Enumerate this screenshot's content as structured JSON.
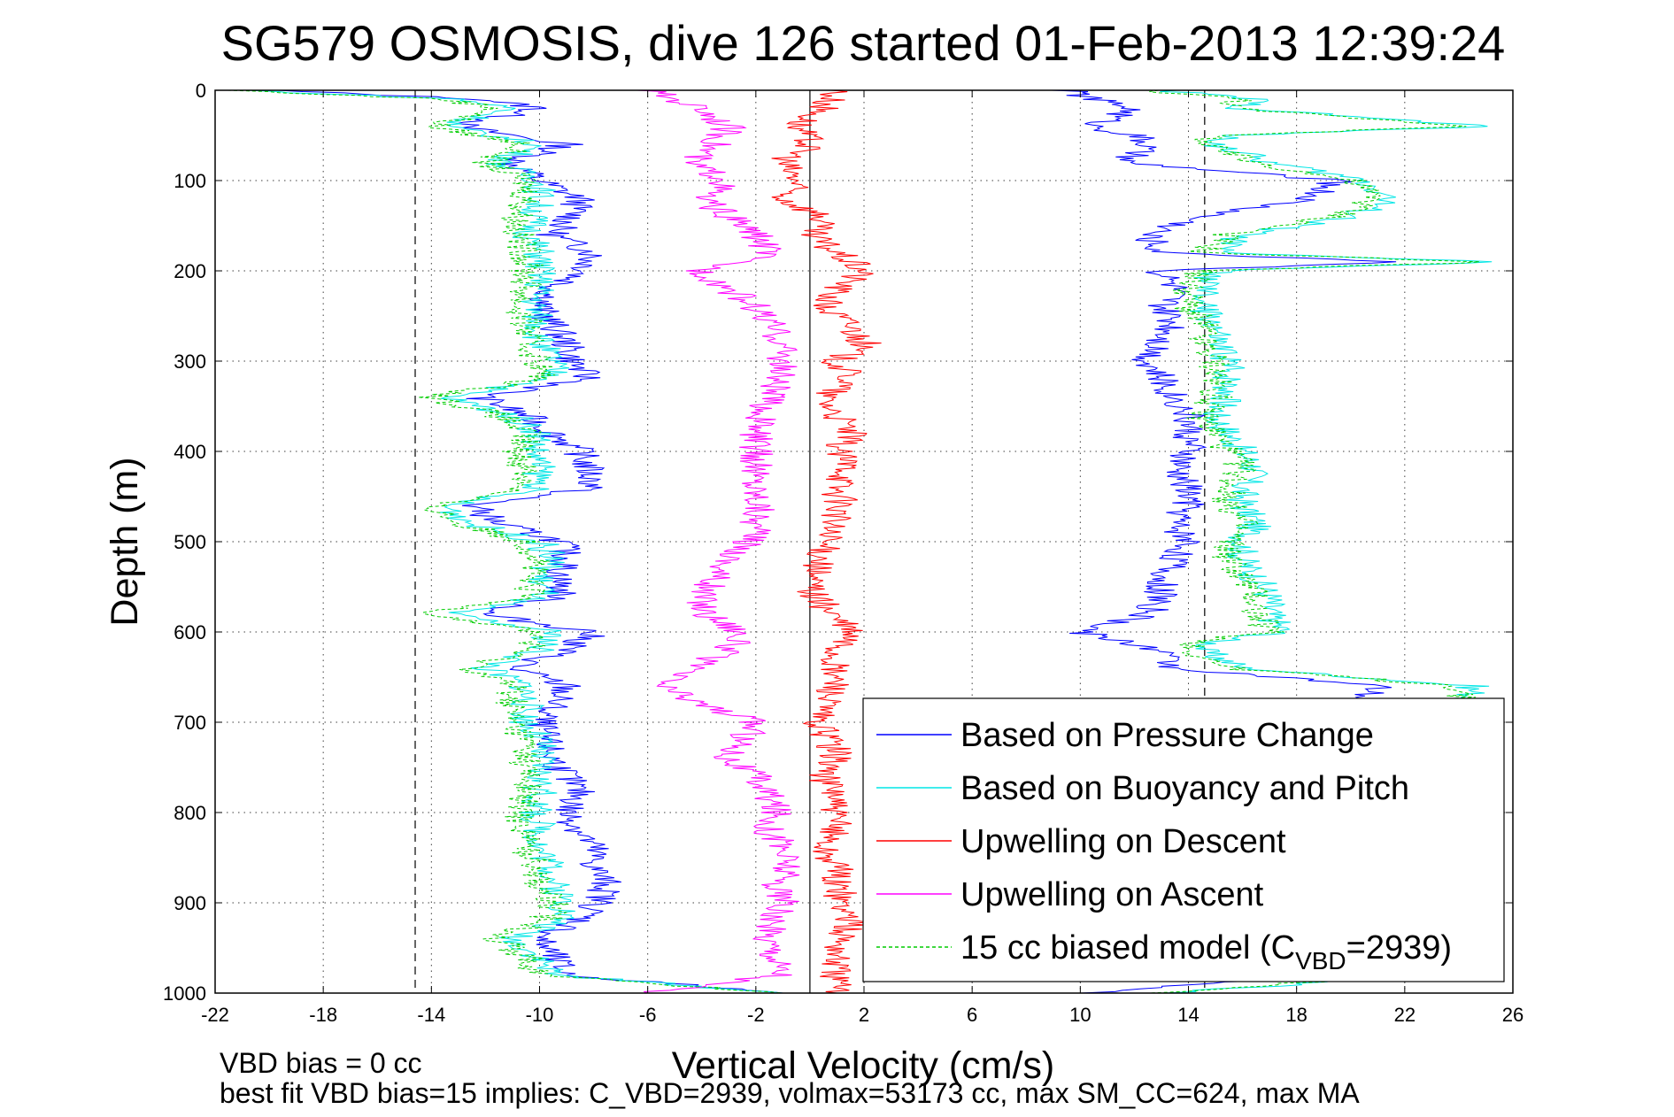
{
  "chart_data": {
    "type": "line",
    "title": "SG579 OSMOSIS, dive 126 started 01-Feb-2013 12:39:24",
    "xlabel": "Vertical Velocity (cm/s)",
    "ylabel": "Depth (m)",
    "xlim": [
      -22,
      26
    ],
    "ylim": [
      0,
      1000
    ],
    "y_reversed": true,
    "grid": true,
    "x_ticks": [
      "-22",
      "-18",
      "-14",
      "-10",
      "-6",
      "-2",
      "2",
      "6",
      "10",
      "14",
      "18",
      "22",
      "26"
    ],
    "y_ticks": [
      "0",
      "100",
      "200",
      "300",
      "400",
      "500",
      "600",
      "700",
      "800",
      "900",
      "1000"
    ],
    "reference_lines": [
      {
        "x": -14.6,
        "style": "dashed"
      },
      {
        "x": 14.6,
        "style": "dashed"
      },
      {
        "x": 0.0,
        "style": "solid"
      }
    ],
    "legend_position": "bottom-right",
    "colors": {
      "pressure": "#0000ff",
      "buoyancy": "#00e6e6",
      "descent": "#ff0000",
      "ascent": "#ff00ff",
      "model": "#00cc00"
    },
    "legend": [
      {
        "label": "Based on Pressure Change",
        "color": "#0000ff",
        "dash": false
      },
      {
        "label": "Based on Buoyancy and Pitch",
        "color": "#00e6e6",
        "dash": false
      },
      {
        "label": "Upwelling on Descent",
        "color": "#ff0000",
        "dash": false
      },
      {
        "label": "Upwelling on Ascent",
        "color": "#ff00ff",
        "dash": false
      },
      {
        "label_main": "15 cc biased model (C",
        "label_sub": "VBD",
        "label_tail": "=2939)",
        "color": "#00cc00",
        "dash": true
      }
    ],
    "series": [
      {
        "name": "Based on Pressure Change (descent)",
        "color": "#0000ff",
        "depth": [
          0,
          10,
          20,
          40,
          60,
          80,
          100,
          120,
          140,
          160,
          180,
          200,
          220,
          240,
          260,
          280,
          300,
          320,
          340,
          360,
          380,
          400,
          420,
          440,
          460,
          480,
          500,
          520,
          540,
          560,
          580,
          600,
          620,
          640,
          660,
          680,
          700,
          720,
          740,
          760,
          780,
          800,
          820,
          840,
          860,
          880,
          900,
          920,
          940,
          960,
          980,
          1000
        ],
        "velocity": [
          -20,
          -12,
          -10,
          -13,
          -9,
          -11,
          -10,
          -8.5,
          -8.8,
          -9.5,
          -8,
          -8.3,
          -9.5,
          -10,
          -9.5,
          -9,
          -8.8,
          -8.2,
          -12.2,
          -10.5,
          -9.5,
          -8.5,
          -8.2,
          -8.0,
          -12.5,
          -11.5,
          -9.2,
          -9.0,
          -9.3,
          -9.2,
          -12.2,
          -8.0,
          -9.0,
          -11.0,
          -9.0,
          -9.5,
          -10.0,
          -9.8,
          -9.5,
          -9.0,
          -8.5,
          -9.0,
          -8.5,
          -8.0,
          -8.0,
          -7.5,
          -7.8,
          -8.5,
          -10.0,
          -9.5,
          -9.0,
          -1.0
        ]
      },
      {
        "name": "Based on Buoyancy and Pitch (descent)",
        "color": "#00e6e6",
        "depth": [
          0,
          10,
          20,
          40,
          60,
          80,
          100,
          120,
          140,
          160,
          180,
          200,
          220,
          240,
          260,
          280,
          300,
          320,
          340,
          360,
          380,
          400,
          420,
          440,
          460,
          480,
          500,
          520,
          540,
          560,
          580,
          600,
          620,
          640,
          660,
          680,
          700,
          720,
          740,
          760,
          780,
          800,
          820,
          840,
          860,
          880,
          900,
          920,
          940,
          960,
          980,
          1000
        ],
        "velocity": [
          -21,
          -13,
          -11,
          -13.5,
          -10,
          -11.5,
          -10,
          -10,
          -10.2,
          -10.4,
          -10,
          -10,
          -10,
          -10.2,
          -10,
          -10,
          -9.5,
          -9.5,
          -13.5,
          -11.0,
          -10.0,
          -10.2,
          -10.0,
          -10.0,
          -13.5,
          -12.5,
          -10.0,
          -9.5,
          -10.0,
          -9.8,
          -13.5,
          -9.5,
          -10.0,
          -12.0,
          -10.5,
          -10.5,
          -10.5,
          -10.0,
          -10.0,
          -10.0,
          -10.0,
          -10.2,
          -10.0,
          -10.0,
          -9.5,
          -9.5,
          -9.0,
          -9.2,
          -11.0,
          -10.0,
          -9.5,
          -1.0
        ]
      },
      {
        "name": "15 cc biased model (descent)",
        "color": "#00cc00",
        "depth": [
          0,
          10,
          20,
          40,
          60,
          80,
          100,
          120,
          140,
          160,
          180,
          200,
          220,
          240,
          260,
          280,
          300,
          320,
          340,
          360,
          380,
          400,
          420,
          440,
          460,
          480,
          500,
          520,
          540,
          560,
          580,
          600,
          620,
          640,
          660,
          680,
          700,
          720,
          740,
          760,
          780,
          800,
          820,
          840,
          860,
          880,
          900,
          920,
          940,
          960,
          980,
          1000
        ],
        "velocity": [
          -21.5,
          -13.5,
          -11.5,
          -14.0,
          -10.5,
          -12.0,
          -10.5,
          -10.5,
          -10.8,
          -10.8,
          -10.5,
          -10.5,
          -10.5,
          -10.8,
          -10.5,
          -10.5,
          -10.0,
          -10.0,
          -14.0,
          -11.5,
          -10.5,
          -10.8,
          -10.5,
          -10.5,
          -14.0,
          -13.0,
          -10.5,
          -10.0,
          -10.5,
          -10.3,
          -14.0,
          -10.0,
          -10.5,
          -12.5,
          -11.0,
          -11.0,
          -11.0,
          -10.5,
          -10.5,
          -10.5,
          -10.5,
          -10.8,
          -10.5,
          -10.5,
          -10.0,
          -10.0,
          -9.5,
          -9.8,
          -11.5,
          -10.5,
          -10.0,
          -1.0
        ]
      },
      {
        "name": "Upwelling on Descent",
        "color": "#ff0000",
        "depth": [
          0,
          20,
          40,
          60,
          80,
          100,
          120,
          140,
          160,
          180,
          200,
          220,
          240,
          260,
          280,
          300,
          320,
          340,
          360,
          380,
          400,
          420,
          440,
          460,
          480,
          500,
          520,
          540,
          560,
          580,
          600,
          620,
          640,
          660,
          680,
          700,
          720,
          740,
          760,
          780,
          800,
          820,
          840,
          860,
          880,
          900,
          920,
          940,
          960,
          980,
          1000
        ],
        "velocity": [
          1.0,
          0.5,
          -0.5,
          0.0,
          -1.0,
          -0.5,
          -1.0,
          0.5,
          0.0,
          1.0,
          2.0,
          1.0,
          0.5,
          1.5,
          2.0,
          1.0,
          1.5,
          0.5,
          1.0,
          1.5,
          1.0,
          1.5,
          1.0,
          1.2,
          0.8,
          0.5,
          0.5,
          0.0,
          0.2,
          0.8,
          1.5,
          1.0,
          0.8,
          1.0,
          0.5,
          0.2,
          0.8,
          1.0,
          0.5,
          1.0,
          0.8,
          1.0,
          0.5,
          1.0,
          1.0,
          1.2,
          1.5,
          1.2,
          1.0,
          1.0,
          1.0
        ]
      },
      {
        "name": "Upwelling on Ascent",
        "color": "#ff00ff",
        "depth": [
          0,
          20,
          40,
          60,
          80,
          100,
          120,
          140,
          160,
          180,
          200,
          220,
          240,
          260,
          280,
          300,
          320,
          340,
          360,
          380,
          400,
          420,
          440,
          460,
          480,
          500,
          520,
          540,
          560,
          580,
          600,
          620,
          640,
          660,
          680,
          700,
          720,
          740,
          760,
          780,
          800,
          820,
          840,
          860,
          880,
          900,
          920,
          940,
          960,
          980,
          1000
        ],
        "velocity": [
          -6.0,
          -4.0,
          -3.0,
          -3.5,
          -4.5,
          -3.0,
          -4.0,
          -3.0,
          -2.0,
          -1.5,
          -4.0,
          -3.0,
          -2.0,
          -1.5,
          -1.0,
          -1.0,
          -1.2,
          -1.5,
          -1.8,
          -2.0,
          -2.0,
          -2.0,
          -2.0,
          -1.8,
          -2.0,
          -2.2,
          -3.0,
          -3.5,
          -4.0,
          -3.8,
          -2.5,
          -3.0,
          -4.5,
          -5.5,
          -4.0,
          -2.0,
          -2.5,
          -3.0,
          -2.0,
          -1.5,
          -1.2,
          -1.5,
          -1.0,
          -0.8,
          -1.2,
          -1.0,
          -1.5,
          -1.5,
          -1.2,
          -1.0,
          -6.0
        ]
      },
      {
        "name": "Based on Pressure Change (ascent)",
        "color": "#0000ff",
        "depth": [
          0,
          10,
          20,
          40,
          50,
          60,
          80,
          100,
          120,
          140,
          160,
          180,
          190,
          200,
          220,
          240,
          260,
          280,
          300,
          320,
          340,
          360,
          380,
          400,
          420,
          440,
          460,
          480,
          500,
          520,
          540,
          560,
          580,
          600,
          610,
          620,
          640,
          660,
          680,
          700,
          720,
          740,
          760,
          780,
          800,
          820,
          840,
          860,
          880,
          900,
          920,
          940,
          960,
          980,
          1000
        ],
        "velocity": [
          9.5,
          10.5,
          12.0,
          10.5,
          12.0,
          12.5,
          11.5,
          19.5,
          18.5,
          14.5,
          12.5,
          13.0,
          22.0,
          13.0,
          13.5,
          13.0,
          13.5,
          13.0,
          12.5,
          13.0,
          13.5,
          14.0,
          14.0,
          14.0,
          13.5,
          14.0,
          14.0,
          13.5,
          14.0,
          13.5,
          13.0,
          13.0,
          12.5,
          10.0,
          11.5,
          13.0,
          13.5,
          21.0,
          20.0,
          22.0,
          21.5,
          20.0,
          21.0,
          21.0,
          21.0,
          20.5,
          20.5,
          20.0,
          20.0,
          20.0,
          20.0,
          19.5,
          19.5,
          19.5,
          10.0
        ]
      },
      {
        "name": "Based on Buoyancy and Pitch (ascent)",
        "color": "#00e6e6",
        "depth": [
          0,
          10,
          20,
          40,
          50,
          60,
          80,
          100,
          120,
          140,
          160,
          180,
          190,
          200,
          220,
          240,
          260,
          280,
          300,
          320,
          340,
          360,
          380,
          400,
          420,
          440,
          460,
          480,
          500,
          520,
          540,
          560,
          580,
          600,
          610,
          620,
          640,
          660,
          680,
          700,
          720,
          740,
          760,
          780,
          800,
          820,
          840,
          860,
          880,
          900,
          920,
          940,
          960,
          980,
          1000
        ],
        "velocity": [
          13.0,
          16.5,
          16.0,
          25.0,
          15.5,
          15.0,
          17.0,
          20.5,
          21.5,
          20.0,
          16.0,
          15.0,
          25.5,
          15.0,
          14.5,
          14.5,
          15.0,
          15.0,
          15.5,
          15.5,
          15.5,
          15.0,
          15.5,
          16.0,
          16.5,
          16.0,
          16.0,
          16.5,
          16.0,
          16.0,
          16.5,
          17.0,
          17.0,
          17.5,
          15.0,
          14.5,
          16.0,
          24.5,
          24.5,
          24.0,
          24.5,
          24.0,
          24.5,
          24.0,
          24.0,
          24.0,
          24.0,
          23.5,
          23.5,
          23.5,
          23.5,
          23.0,
          23.0,
          23.0,
          13.0
        ]
      },
      {
        "name": "15 cc biased model (ascent)",
        "color": "#00cc00",
        "depth": [
          0,
          10,
          20,
          40,
          50,
          60,
          80,
          100,
          120,
          140,
          160,
          180,
          190,
          200,
          220,
          240,
          260,
          280,
          300,
          320,
          340,
          360,
          380,
          400,
          420,
          440,
          460,
          480,
          500,
          520,
          540,
          560,
          580,
          600,
          610,
          620,
          640,
          660,
          680,
          700,
          720,
          740,
          760,
          780,
          800,
          820,
          840,
          860,
          880,
          900,
          920,
          940,
          960,
          980,
          1000
        ],
        "velocity": [
          12.5,
          16.0,
          15.5,
          24.5,
          15.0,
          14.5,
          16.5,
          20.0,
          21.0,
          19.5,
          15.5,
          14.5,
          25.0,
          14.5,
          14.0,
          14.0,
          14.5,
          14.5,
          15.0,
          15.0,
          15.0,
          14.5,
          15.0,
          15.5,
          16.0,
          15.5,
          15.5,
          16.0,
          15.5,
          15.5,
          16.0,
          16.5,
          16.5,
          17.0,
          14.5,
          14.0,
          15.5,
          24.0,
          24.0,
          23.5,
          24.0,
          23.5,
          24.0,
          23.5,
          23.5,
          23.5,
          23.5,
          23.0,
          23.0,
          23.0,
          23.0,
          22.5,
          22.5,
          22.5,
          12.5
        ]
      }
    ],
    "footer": {
      "line1": "VBD bias = 0 cc",
      "line2": "best fit VBD bias=15 implies: C_VBD=2939, volmax=53173 cc, max SM_CC=624, max MA"
    }
  }
}
